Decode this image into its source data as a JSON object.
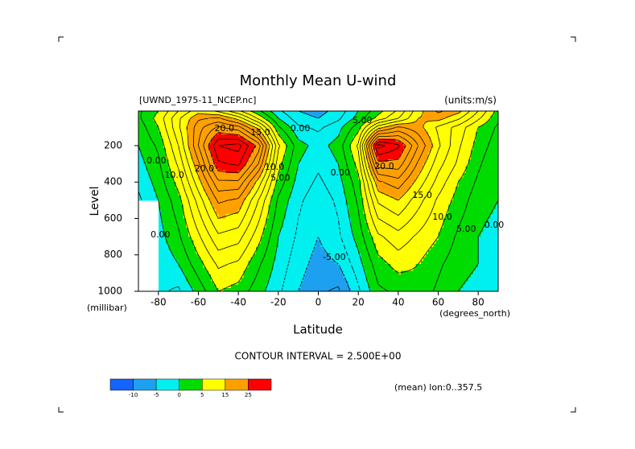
{
  "chart_data": {
    "type": "contour",
    "title": "Monthly Mean U-wind",
    "subtitle": "[UWND_1975-11_NCEP.nc]",
    "units": "(units:m/s)",
    "xlabel": "Latitude",
    "xunit": "(degrees_north)",
    "ylabel": "Level",
    "yunit": "(millibar)",
    "footer": "(mean) lon:0..357.5",
    "contour_interval": {
      "value": 2.5,
      "label": "CONTOUR INTERVAL = 2.500E+00"
    },
    "x": [
      -90,
      -80,
      -70,
      -60,
      -50,
      -40,
      -30,
      -20,
      -10,
      0,
      10,
      20,
      30,
      40,
      50,
      60,
      70,
      80,
      90
    ],
    "y": [
      10,
      50,
      100,
      200,
      300,
      400,
      500,
      700,
      850,
      1000
    ],
    "values": [
      [
        2,
        5,
        10,
        14,
        12,
        8,
        3,
        -2,
        -5,
        -6,
        -4,
        0,
        4,
        8,
        14,
        18,
        16,
        10,
        4
      ],
      [
        2,
        6,
        12,
        17,
        18,
        14,
        7,
        0,
        -4,
        -5,
        -3,
        1,
        6,
        10,
        15,
        16,
        13,
        8,
        3
      ],
      [
        1,
        5,
        12,
        19,
        23,
        21,
        14,
        3,
        -2,
        -3,
        -1,
        4,
        14,
        18,
        16,
        12,
        9,
        5,
        2
      ],
      [
        0,
        3,
        10,
        20,
        30,
        31,
        24,
        8,
        1,
        -1,
        1,
        8,
        31,
        28,
        20,
        13,
        8,
        4,
        1
      ],
      [
        -1,
        2,
        8,
        17,
        27,
        28,
        20,
        6,
        0,
        -2,
        0,
        6,
        24,
        24,
        17,
        11,
        7,
        3,
        0
      ],
      [
        -2,
        1,
        6,
        14,
        22,
        22,
        14,
        4,
        -1,
        -3,
        -1,
        4,
        17,
        19,
        14,
        9,
        5,
        2,
        0
      ],
      [
        -3,
        0,
        4,
        11,
        18,
        17,
        10,
        2,
        -2,
        -4,
        -2,
        3,
        13,
        15,
        11,
        7,
        4,
        1,
        0
      ],
      [
        null,
        -1,
        2,
        7,
        12,
        11,
        6,
        0,
        -3,
        -5,
        -3,
        1,
        7,
        9,
        7,
        5,
        2,
        0,
        -1
      ],
      [
        null,
        -2,
        0,
        4,
        8,
        7,
        3,
        -1,
        -4,
        -6,
        -5,
        -1,
        4,
        6,
        5,
        3,
        1,
        0,
        -1
      ],
      [
        null,
        -2,
        -3,
        1,
        5,
        4,
        1,
        -2,
        -5,
        -7,
        -8,
        -3,
        2,
        3,
        4,
        2,
        0,
        -1,
        -2
      ]
    ],
    "xlim": [
      -90,
      90
    ],
    "ylim": [
      1000,
      10
    ],
    "xticks": [
      -80,
      -60,
      -40,
      -20,
      0,
      20,
      40,
      60,
      80
    ],
    "yticks": [
      200,
      400,
      600,
      800,
      1000
    ],
    "colorbar": {
      "boundaries": [
        -10,
        -5,
        0,
        5,
        15,
        25
      ],
      "colors": [
        "#1464ff",
        "#1ea0f0",
        "#00f0f0",
        "#00dc00",
        "#ffff00",
        "#ffa000",
        "#ff0000"
      ]
    },
    "contour_labels": [
      {
        "value": 20,
        "label": "20.0",
        "x": -47,
        "y": 107
      },
      {
        "value": 15,
        "label": "15.0",
        "x": -29,
        "y": 130
      },
      {
        "value": 0,
        "label": "0.00",
        "x": -9,
        "y": 107
      },
      {
        "value": 5,
        "label": "5.00",
        "x": 22,
        "y": 63
      },
      {
        "value": 0,
        "label": "0.00",
        "x": -81,
        "y": 284
      },
      {
        "value": 10,
        "label": "10.0",
        "x": -72,
        "y": 364
      },
      {
        "value": 20,
        "label": "20.0",
        "x": -57,
        "y": 328
      },
      {
        "value": 10,
        "label": "10.0",
        "x": -22,
        "y": 320
      },
      {
        "value": 5,
        "label": "5.00",
        "x": -19,
        "y": 380
      },
      {
        "value": 0,
        "label": "0.00",
        "x": 11,
        "y": 350
      },
      {
        "value": 20,
        "label": "20.0",
        "x": 33,
        "y": 315
      },
      {
        "value": 15,
        "label": "15.0",
        "x": 52,
        "y": 474
      },
      {
        "value": 10,
        "label": "10.0",
        "x": 62,
        "y": 593
      },
      {
        "value": 5,
        "label": "5.00",
        "x": 74,
        "y": 660
      },
      {
        "value": 0,
        "label": "0.00",
        "x": 88,
        "y": 638
      },
      {
        "value": -5,
        "label": "-5.00",
        "x": 8,
        "y": 815
      },
      {
        "value": 0,
        "label": "0.00",
        "x": -79,
        "y": 690
      }
    ]
  }
}
